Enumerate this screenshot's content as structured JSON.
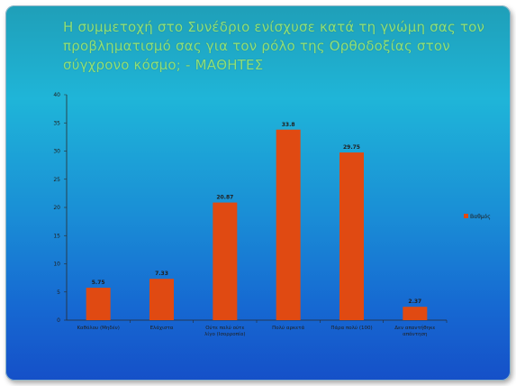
{
  "chart_data": {
    "type": "bar",
    "title": "Η συμμετοχή στο Συνέδριο ενίσχυσε κατά τη γνώμη σας τον προβληματισμό σας για τον ρόλο της Ορθοδοξίας στον σύγχρονο κόσμο; - ΜΑΘΗΤΕΣ",
    "categories": [
      [
        "Καθόλου (Μηδέν)"
      ],
      [
        "Ελάχιστα"
      ],
      [
        "Ούτε πολύ ούτε",
        "λίγο (Ισορροπία)"
      ],
      [
        "Πολύ αρκετά"
      ],
      [
        "Πάρα πολύ (100)"
      ],
      [
        "Δεν απαντήθηκε",
        "απάντηση"
      ]
    ],
    "series": [
      {
        "name": "Βαθμός",
        "values": [
          5.75,
          7.33,
          20.87,
          33.8,
          29.75,
          2.37
        ],
        "value_labels": [
          "5.75",
          "7.33",
          "20.87",
          "33.8",
          "29.75",
          "2.37"
        ],
        "color": "#e04a12"
      }
    ],
    "ylim": [
      0,
      40
    ],
    "yticks": [
      0,
      5,
      10,
      15,
      20,
      25,
      30,
      35,
      40
    ],
    "grid": false,
    "legend": "right",
    "background_colors": [
      "#1fb5d8",
      "#1550c8"
    ],
    "title_color": "#8fe07a"
  }
}
